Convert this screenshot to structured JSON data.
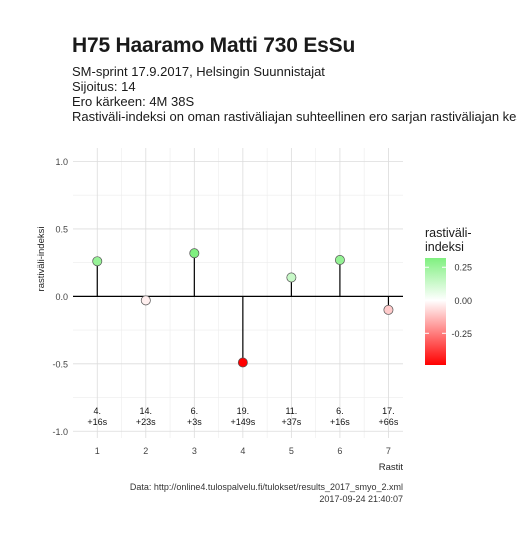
{
  "title": "H75 Haaramo Matti 730 EsSu",
  "subtitle_lines": [
    "SM-sprint 17.9.2017, Helsingin Suunnistajat",
    "Sijoitus: 14",
    "Ero kärkeen: 4M 38S",
    "Rastiväli-indeksi on oman rastiväliajan suhteellinen ero sarjan rastiväliajan kes"
  ],
  "caption_lines": [
    "Data: http://online4.tulospalvelu.fi/tulokset/results_2017_smyo_2.xml",
    "2017-09-24 21:40:07"
  ],
  "chart_data": {
    "type": "scatter",
    "xlabel": "Rastit",
    "ylabel": "rastiväli-indeksi",
    "x": [
      1,
      2,
      3,
      4,
      5,
      6,
      7
    ],
    "y": [
      0.26,
      -0.03,
      0.32,
      -0.49,
      0.14,
      0.27,
      -0.1
    ],
    "xlim": [
      0.5,
      7.3
    ],
    "ylim": [
      -1.05,
      1.1
    ],
    "yticks": [
      -1.0,
      -0.5,
      0.0,
      0.5,
      1.0
    ],
    "yticklabels": [
      "-1.0",
      "-0.5",
      "0.0",
      "0.5",
      "1.0"
    ],
    "xticklabels": [
      "1",
      "2",
      "3",
      "4",
      "5",
      "6",
      "7"
    ],
    "point_labels": [
      [
        "4.",
        "+16s"
      ],
      [
        "14.",
        "+23s"
      ],
      [
        "6.",
        "+3s"
      ],
      [
        "19.",
        "+149s"
      ],
      [
        "11.",
        "+37s"
      ],
      [
        "6.",
        "+16s"
      ],
      [
        "17.",
        "+66s"
      ]
    ],
    "grid": true,
    "legend": {
      "title_lines": [
        "rastiväli-",
        "indeksi"
      ],
      "placement": "right",
      "ticks": [
        0.25,
        0.0,
        -0.25
      ],
      "ticklabels": [
        "0.25",
        "0.00",
        "-0.25"
      ],
      "range": [
        -0.49,
        0.32
      ],
      "colors": {
        "high": "#80f080",
        "mid": "#ffffff",
        "low": "#ff0000"
      }
    }
  }
}
